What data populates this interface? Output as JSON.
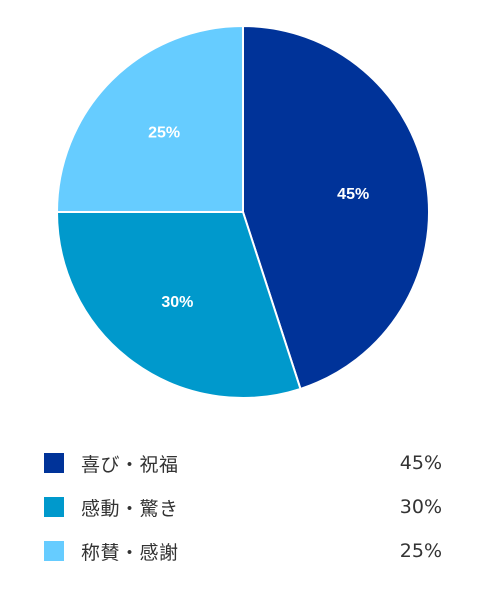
{
  "chart_data": {
    "type": "pie",
    "categories": [
      "喜び・祝福",
      "感動・驚き",
      "称賛・感謝"
    ],
    "values": [
      45,
      30,
      25
    ],
    "value_labels": [
      "45%",
      "30%",
      "25%"
    ],
    "colors": [
      "#003399",
      "#0099cc",
      "#66ccff"
    ],
    "start_angle": "12 o'clock",
    "direction": "clockwise",
    "legend_position": "bottom"
  },
  "legend": {
    "items": [
      {
        "label": "喜び・祝福",
        "value": "45%",
        "color": "#003399"
      },
      {
        "label": "感動・驚き",
        "value": "30%",
        "color": "#0099cc"
      },
      {
        "label": "称賛・感謝",
        "value": "25%",
        "color": "#66ccff"
      }
    ]
  }
}
